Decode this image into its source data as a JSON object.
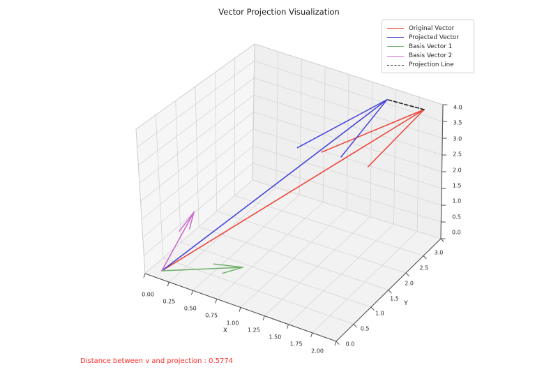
{
  "title": "Vector Projection Visualization",
  "annotation": {
    "text": "Distance between v and projection : 0.5774",
    "color": "#ff2d26"
  },
  "legend": {
    "items": [
      {
        "label": "Original Vector",
        "color": "#ef4339",
        "dash": false
      },
      {
        "label": "Projected Vector",
        "color": "#4343dc",
        "dash": false
      },
      {
        "label": "Basis Vector 1",
        "color": "#6fb06c",
        "dash": false
      },
      {
        "label": "Basis Vector 2",
        "color": "#cb6bcb",
        "dash": false
      },
      {
        "label": "Projection Line",
        "color": "#333333",
        "dash": true
      }
    ]
  },
  "axes": {
    "x": {
      "label": "X",
      "tick_labels": [
        "0.00",
        "0.25",
        "0.50",
        "0.75",
        "1.00",
        "1.25",
        "1.50",
        "1.75",
        "2.00"
      ]
    },
    "y": {
      "label": "Y",
      "tick_labels": [
        "0.0",
        "0.5",
        "1.0",
        "1.5",
        "2.0",
        "2.5",
        "3.0"
      ]
    },
    "z": {
      "label": "",
      "tick_labels": [
        "0.0",
        "0.5",
        "1.0",
        "1.5",
        "2.0",
        "2.5",
        "3.0",
        "3.5",
        "4.0"
      ]
    }
  },
  "chart_data": {
    "type": "3d-quiver",
    "title": "Vector Projection Visualization",
    "xlabel": "X",
    "ylabel": "Y",
    "xlim": [
      0,
      2
    ],
    "ylim": [
      0,
      3
    ],
    "zlim": [
      0,
      4
    ],
    "grid": true,
    "legend_position": "upper right",
    "vectors": [
      {
        "name": "Original Vector",
        "from": [
          0,
          0,
          0
        ],
        "to": [
          2,
          3,
          4
        ],
        "color": "#ef4339"
      },
      {
        "name": "Projected Vector",
        "from": [
          0,
          0,
          0
        ],
        "to": [
          1.667,
          2.667,
          4.333
        ],
        "color": "#4343dc"
      },
      {
        "name": "Basis Vector 1",
        "from": [
          0,
          0,
          0
        ],
        "to": [
          1,
          0,
          1
        ],
        "color": "#6fb06c"
      },
      {
        "name": "Basis Vector 2",
        "from": [
          0,
          0,
          0
        ],
        "to": [
          0,
          1,
          1
        ],
        "color": "#cb6bcb"
      }
    ],
    "projection_line": {
      "name": "Projection Line",
      "from": [
        2,
        3,
        4
      ],
      "to": [
        1.667,
        2.667,
        4.333
      ],
      "color": "#1a1a1a",
      "style": "dashed"
    },
    "distance_v_to_projection": 0.5774
  }
}
